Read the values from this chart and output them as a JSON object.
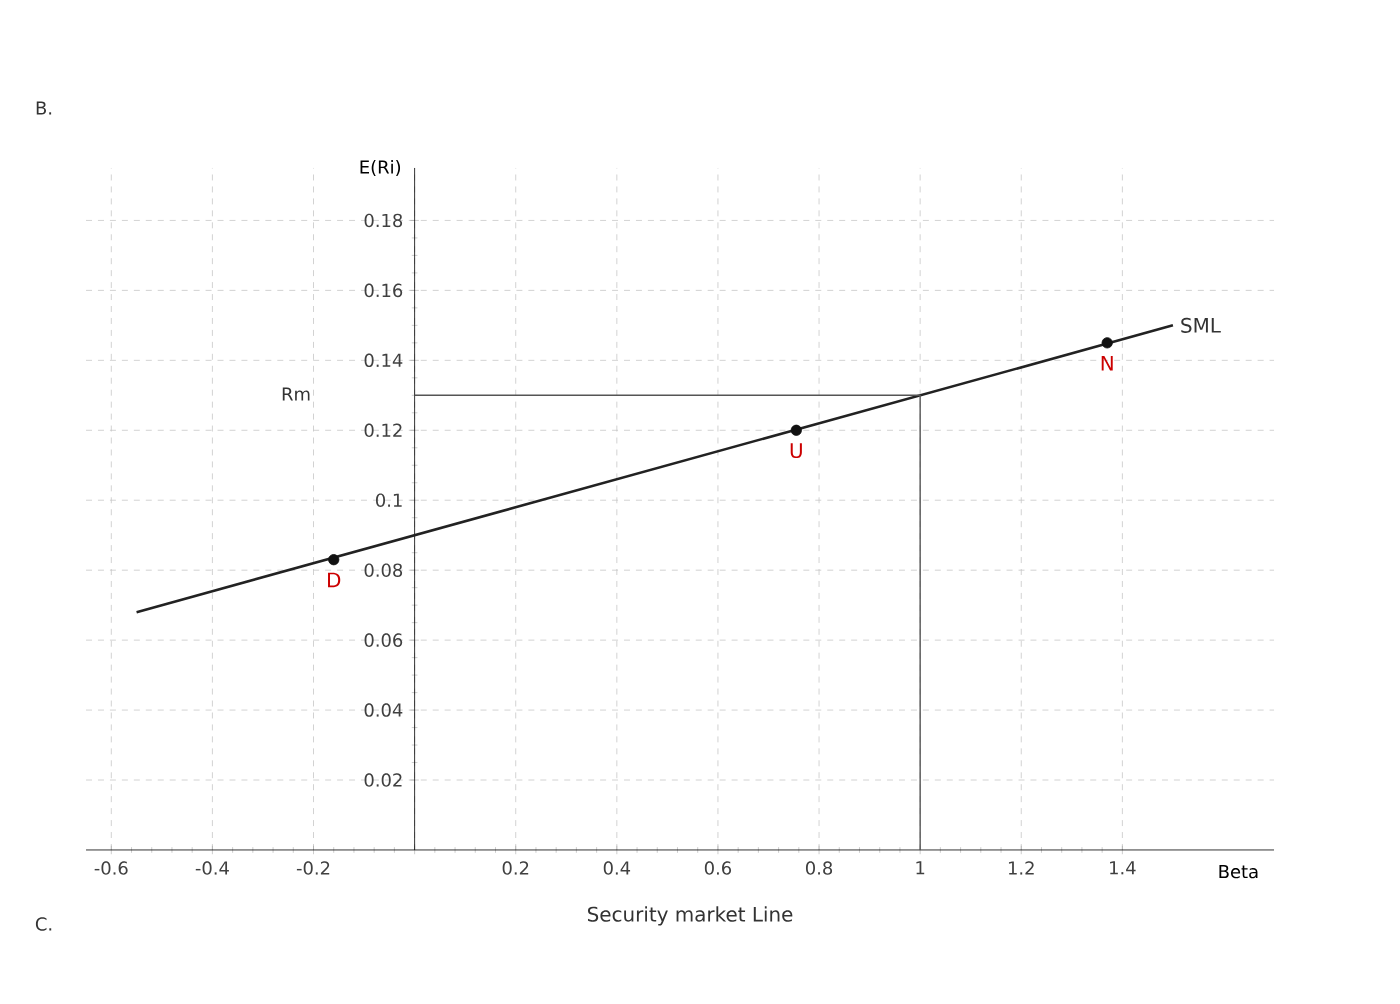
{
  "chart_data": {
    "type": "line",
    "title": "Security market Line",
    "xlabel": "Beta",
    "ylabel": "E(Ri)",
    "xlim": [
      -0.65,
      1.7
    ],
    "ylim": [
      0,
      0.195
    ],
    "xticks": [
      -0.6,
      -0.4,
      -0.2,
      {
        "value": 0,
        "label": null
      },
      0.2,
      0.4,
      0.6,
      0.8,
      1,
      1.2,
      1.4
    ],
    "yticks": [
      0.02,
      0.04,
      0.06,
      0.08,
      0.1,
      0.12,
      0.14,
      0.16,
      0.18
    ],
    "grid": true,
    "series": [
      {
        "name": "SML",
        "color": "#222222",
        "x": [
          -0.55,
          1.5
        ],
        "values": [
          0.068,
          0.15
        ]
      },
      {
        "color": "#555555",
        "x": [
          0,
          1,
          1
        ],
        "values": [
          0.13,
          0.13,
          0
        ]
      },
      {
        "name": "D",
        "type": "scatter",
        "marker": "circle",
        "color": "#111111",
        "x": [
          -0.16
        ],
        "values": [
          0.083
        ]
      },
      {
        "name": "U",
        "type": "scatter",
        "marker": "circle",
        "color": "#111111",
        "x": [
          0.755
        ],
        "values": [
          0.12
        ]
      },
      {
        "name": "N",
        "type": "scatter",
        "marker": "circle",
        "color": "#111111",
        "x": [
          1.37
        ],
        "values": [
          0.145
        ]
      }
    ],
    "annotations": [
      "Rm",
      "B.",
      "C."
    ]
  }
}
